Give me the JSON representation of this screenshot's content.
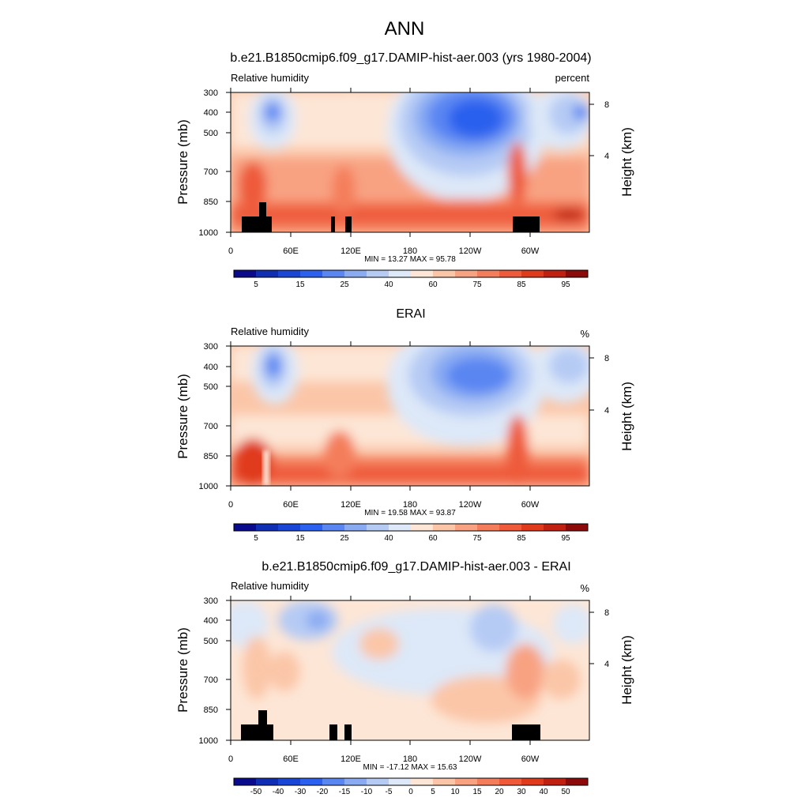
{
  "figure": {
    "season": "ANN"
  },
  "colors": {
    "abs_scale": [
      "#0a0a8c",
      "#0f2eb4",
      "#1a46d6",
      "#2c60ee",
      "#5a86f2",
      "#8aabf2",
      "#b6cbf4",
      "#dde8f8",
      "#fde6d6",
      "#fbc6a8",
      "#f8a282",
      "#f47e5c",
      "#ee5a3a",
      "#e03a1c",
      "#c0200f",
      "#8c0a0a"
    ],
    "diff_scale": [
      "#0a0a8c",
      "#0f2eb4",
      "#1a46d6",
      "#2c60ee",
      "#5a86f2",
      "#8aabf2",
      "#b6cbf4",
      "#dde8f8",
      "#fde6d6",
      "#fbc6a8",
      "#f8a282",
      "#f47e5c",
      "#ee5a3a",
      "#e03a1c",
      "#c0200f",
      "#8c0a0a"
    ],
    "land_mask": "#000000"
  },
  "chart_data": [
    {
      "type": "heatmap",
      "panel": "model",
      "title": "b.e21.B1850cmip6.f09_g17.DAMIP-hist-aer.003 (yrs 1980-2004)",
      "left_label": "Relative humidity",
      "units": "percent",
      "ylabel": "Pressure (mb)",
      "ylabel_right": "Height (km)",
      "y_ticks": [
        "300",
        "400",
        "500",
        "700",
        "850",
        "1000"
      ],
      "y_ticks_right": [
        "8",
        "4"
      ],
      "x_ticks": [
        "0",
        "60E",
        "120E",
        "180",
        "120W",
        "60W"
      ],
      "stats": "MIN = 13.27 MAX = 95.78",
      "min": 13.27,
      "max": 95.78,
      "colorbar_labels": [
        "5",
        "15",
        "25",
        "40",
        "60",
        "75",
        "85",
        "95"
      ]
    },
    {
      "type": "heatmap",
      "panel": "obs",
      "title": "ERAI",
      "left_label": "Relative humidity",
      "units": "%",
      "ylabel": "Pressure (mb)",
      "ylabel_right": "Height (km)",
      "y_ticks": [
        "300",
        "400",
        "500",
        "700",
        "850",
        "1000"
      ],
      "y_ticks_right": [
        "8",
        "4"
      ],
      "x_ticks": [
        "0",
        "60E",
        "120E",
        "180",
        "120W",
        "60W"
      ],
      "stats": "MIN = 19.58 MAX = 93.87",
      "min": 19.58,
      "max": 93.87,
      "colorbar_labels": [
        "5",
        "15",
        "25",
        "40",
        "60",
        "75",
        "85",
        "95"
      ]
    },
    {
      "type": "heatmap",
      "panel": "difference",
      "title": "b.e21.B1850cmip6.f09_g17.DAMIP-hist-aer.003 - ERAI",
      "left_label": "Relative humidity",
      "units": "%",
      "ylabel": "Pressure (mb)",
      "ylabel_right": "Height (km)",
      "y_ticks": [
        "300",
        "400",
        "500",
        "700",
        "850",
        "1000"
      ],
      "y_ticks_right": [
        "8",
        "4"
      ],
      "x_ticks": [
        "0",
        "60E",
        "120E",
        "180",
        "120W",
        "60W"
      ],
      "stats": "MIN = -17.12 MAX = 15.63",
      "min": -17.12,
      "max": 15.63,
      "colorbar_labels": [
        "-50",
        "-40",
        "-30",
        "-20",
        "-15",
        "-10",
        "-5",
        "0",
        "5",
        "10",
        "15",
        "20",
        "30",
        "40",
        "50"
      ]
    }
  ]
}
